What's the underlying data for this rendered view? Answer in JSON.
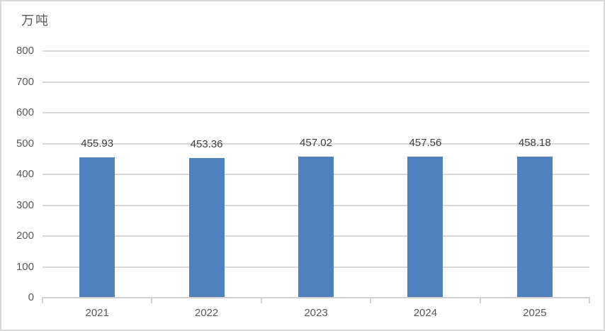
{
  "unit_label": "万吨",
  "chart_data": {
    "type": "bar",
    "title": "",
    "xlabel": "",
    "ylabel": "万吨",
    "categories": [
      "2021",
      "2022",
      "2023",
      "2024",
      "2025"
    ],
    "values": [
      455.93,
      453.36,
      457.02,
      457.56,
      458.18
    ],
    "data_labels": [
      "455.93",
      "453.36",
      "457.02",
      "457.56",
      "458.18"
    ],
    "ylim": [
      0,
      800
    ],
    "yticks": [
      0,
      100,
      200,
      300,
      400,
      500,
      600,
      700,
      800
    ],
    "grid": true,
    "legend": false
  },
  "colors": {
    "bar": "#4E81BD",
    "gridline": "#D9D9D9",
    "axis": "#D2D2D2",
    "text_muted": "#595959",
    "data_label": "#404040",
    "border": "#D9D9D9",
    "background": "#FFFFFF"
  }
}
